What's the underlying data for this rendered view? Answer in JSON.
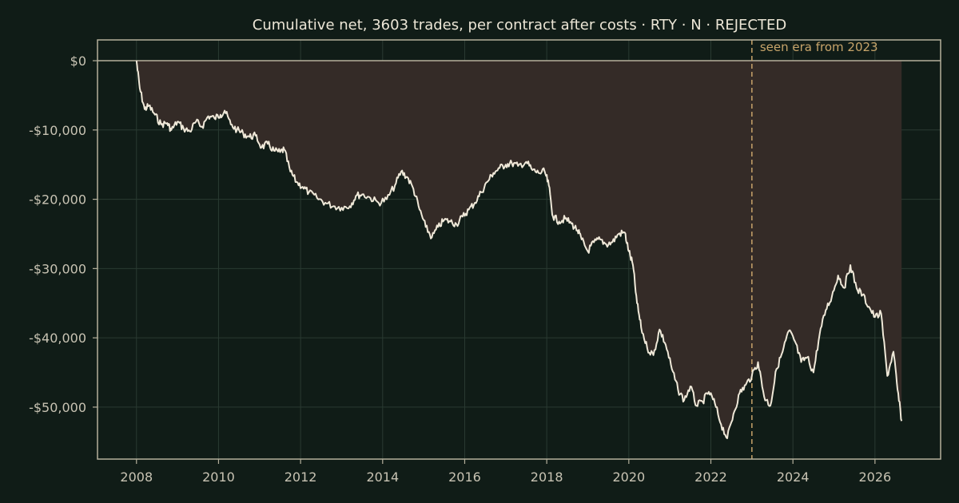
{
  "chart_data": {
    "type": "line",
    "title": "Cumulative net, 3603 trades, per contract after costs  ·  RTY · N · REJECTED",
    "xlabel": "",
    "ylabel": "",
    "x_ticks": [
      2008,
      2010,
      2012,
      2014,
      2016,
      2018,
      2020,
      2022,
      2024,
      2026
    ],
    "x_tick_labels": [
      "2008",
      "2010",
      "2012",
      "2014",
      "2016",
      "2018",
      "2020",
      "2022",
      "2024",
      "2026"
    ],
    "y_ticks": [
      0,
      -10000,
      -20000,
      -30000,
      -40000,
      -50000
    ],
    "y_tick_labels": [
      "$0",
      "-$10,000",
      "-$20,000",
      "-$30,000",
      "-$40,000",
      "-$50,000"
    ],
    "xlim": [
      2007.05,
      2027.6
    ],
    "ylim": [
      -57500,
      3000
    ],
    "grid": true,
    "legend": "none",
    "annotation": {
      "label": "seen era from 2023",
      "x": 2023.0
    },
    "series": [
      {
        "x": [
          2008.0,
          2008.08,
          2008.2,
          2008.3,
          2008.45,
          2008.6,
          2008.75,
          2008.85,
          2009.0,
          2009.15,
          2009.3,
          2009.45,
          2009.6,
          2009.75,
          2009.9,
          2010.05,
          2010.15,
          2010.3,
          2010.45,
          2010.6,
          2010.75,
          2010.9,
          2011.05,
          2011.2,
          2011.35,
          2011.5,
          2011.6,
          2011.75,
          2011.9,
          2012.05,
          2012.2,
          2012.4,
          2012.6,
          2012.8,
          2013.0,
          2013.2,
          2013.35,
          2013.5,
          2013.7,
          2013.9,
          2014.1,
          2014.3,
          2014.45,
          2014.6,
          2014.75,
          2014.9,
          2015.05,
          2015.2,
          2015.35,
          2015.5,
          2015.65,
          2015.8,
          2015.95,
          2016.1,
          2016.25,
          2016.4,
          2016.55,
          2016.7,
          2016.85,
          2017.0,
          2017.15,
          2017.3,
          2017.5,
          2017.65,
          2017.8,
          2017.95,
          2018.05,
          2018.15,
          2018.3,
          2018.45,
          2018.6,
          2018.75,
          2018.85,
          2019.0,
          2019.15,
          2019.3,
          2019.45,
          2019.6,
          2019.75,
          2019.9,
          2020.0,
          2020.1,
          2020.2,
          2020.3,
          2020.45,
          2020.6,
          2020.75,
          2020.9,
          2021.05,
          2021.2,
          2021.35,
          2021.5,
          2021.65,
          2021.8,
          2021.95,
          2022.1,
          2022.25,
          2022.4,
          2022.55,
          2022.7,
          2022.85,
          2023.0,
          2023.15,
          2023.3,
          2023.45,
          2023.6,
          2023.75,
          2023.9,
          2024.05,
          2024.2,
          2024.35,
          2024.5,
          2024.65,
          2024.8,
          2024.95,
          2025.1,
          2025.25,
          2025.4,
          2025.55,
          2025.7,
          2025.85,
          2026.0,
          2026.15,
          2026.3,
          2026.45,
          2026.55,
          2026.65
        ],
        "y": [
          0,
          -4000,
          -7000,
          -6500,
          -7800,
          -9200,
          -9000,
          -10000,
          -8800,
          -9800,
          -10200,
          -8800,
          -9500,
          -8000,
          -8300,
          -7800,
          -7200,
          -9200,
          -10000,
          -10500,
          -11000,
          -10800,
          -12500,
          -12000,
          -13000,
          -13200,
          -12800,
          -16000,
          -17500,
          -18200,
          -19000,
          -19800,
          -20500,
          -21000,
          -21200,
          -21000,
          -19500,
          -19300,
          -19800,
          -20500,
          -20000,
          -18000,
          -16000,
          -16800,
          -18500,
          -21500,
          -24000,
          -25500,
          -24000,
          -23000,
          -23200,
          -23600,
          -22500,
          -21500,
          -20500,
          -19000,
          -17500,
          -16200,
          -15500,
          -15000,
          -14800,
          -15200,
          -14600,
          -15800,
          -16200,
          -16000,
          -18000,
          -22500,
          -23200,
          -22800,
          -23500,
          -24500,
          -25800,
          -27500,
          -26200,
          -25800,
          -26500,
          -26200,
          -25000,
          -24800,
          -27500,
          -29500,
          -35000,
          -38500,
          -41500,
          -42500,
          -38800,
          -41000,
          -44500,
          -47500,
          -49000,
          -47000,
          -49800,
          -49200,
          -47800,
          -49500,
          -52500,
          -54500,
          -51000,
          -48000,
          -46800,
          -45500,
          -43500,
          -48500,
          -49800,
          -44500,
          -42000,
          -39000,
          -40500,
          -43500,
          -42800,
          -45000,
          -39500,
          -36000,
          -34000,
          -31000,
          -32800,
          -29500,
          -32800,
          -33800,
          -35500,
          -37000,
          -36500,
          -45500,
          -42000,
          -47500,
          -52000
        ]
      }
    ]
  }
}
